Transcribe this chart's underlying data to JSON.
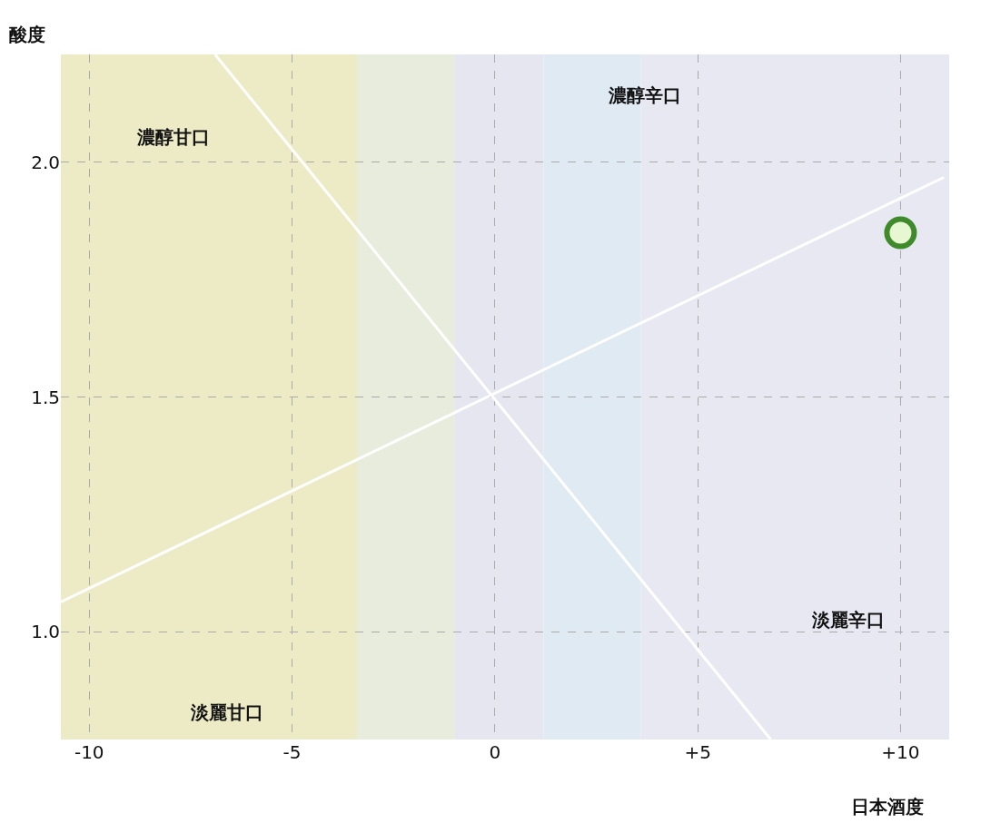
{
  "chart_data": {
    "type": "scatter",
    "xlabel": "日本酒度",
    "ylabel": "酸度",
    "xlim": [
      -10.7,
      11.2
    ],
    "ylim": [
      0.77,
      2.23
    ],
    "xticks": [
      -10,
      -5,
      0,
      {
        "value": 5,
        "label": "+5"
      },
      {
        "value": 10,
        "label": "+10"
      }
    ],
    "yticks": [
      {
        "value": 1,
        "label": "1.0"
      },
      1.5,
      {
        "value": 2,
        "label": "2.0"
      }
    ],
    "grid": true,
    "marker": "circle",
    "bands": [
      {
        "axis": "x",
        "from": -10.7,
        "to": -3.4,
        "color": "#ecebc6"
      },
      {
        "axis": "x",
        "from": -3.4,
        "to": -1,
        "color": "#e8ecdc"
      },
      {
        "axis": "x",
        "from": -1,
        "to": 1.2,
        "color": "#e6e6f0"
      },
      {
        "axis": "x",
        "from": 1.2,
        "to": 3.6,
        "color": "#dfeaf3"
      },
      {
        "axis": "x",
        "from": 3.6,
        "to": 11.2,
        "color": "#e8e8f2"
      }
    ],
    "series": [
      {
        "type": "line",
        "color": "#ffffff",
        "x": [
          -6.9,
          6.8
        ],
        "values": [
          2.23,
          0.77
        ],
        "marker": "none"
      },
      {
        "type": "line",
        "color": "#ffffff",
        "x": [
          -10.7,
          11.07
        ],
        "values": [
          1.063,
          1.968
        ],
        "marker": "none"
      },
      {
        "color": "#3f8a2a",
        "x": [
          10
        ],
        "values": [
          1.85
        ]
      }
    ],
    "annotations": [
      "濃醇甘口",
      "濃醇辛口",
      "淡麗辛口",
      "淡麗甘口"
    ]
  }
}
